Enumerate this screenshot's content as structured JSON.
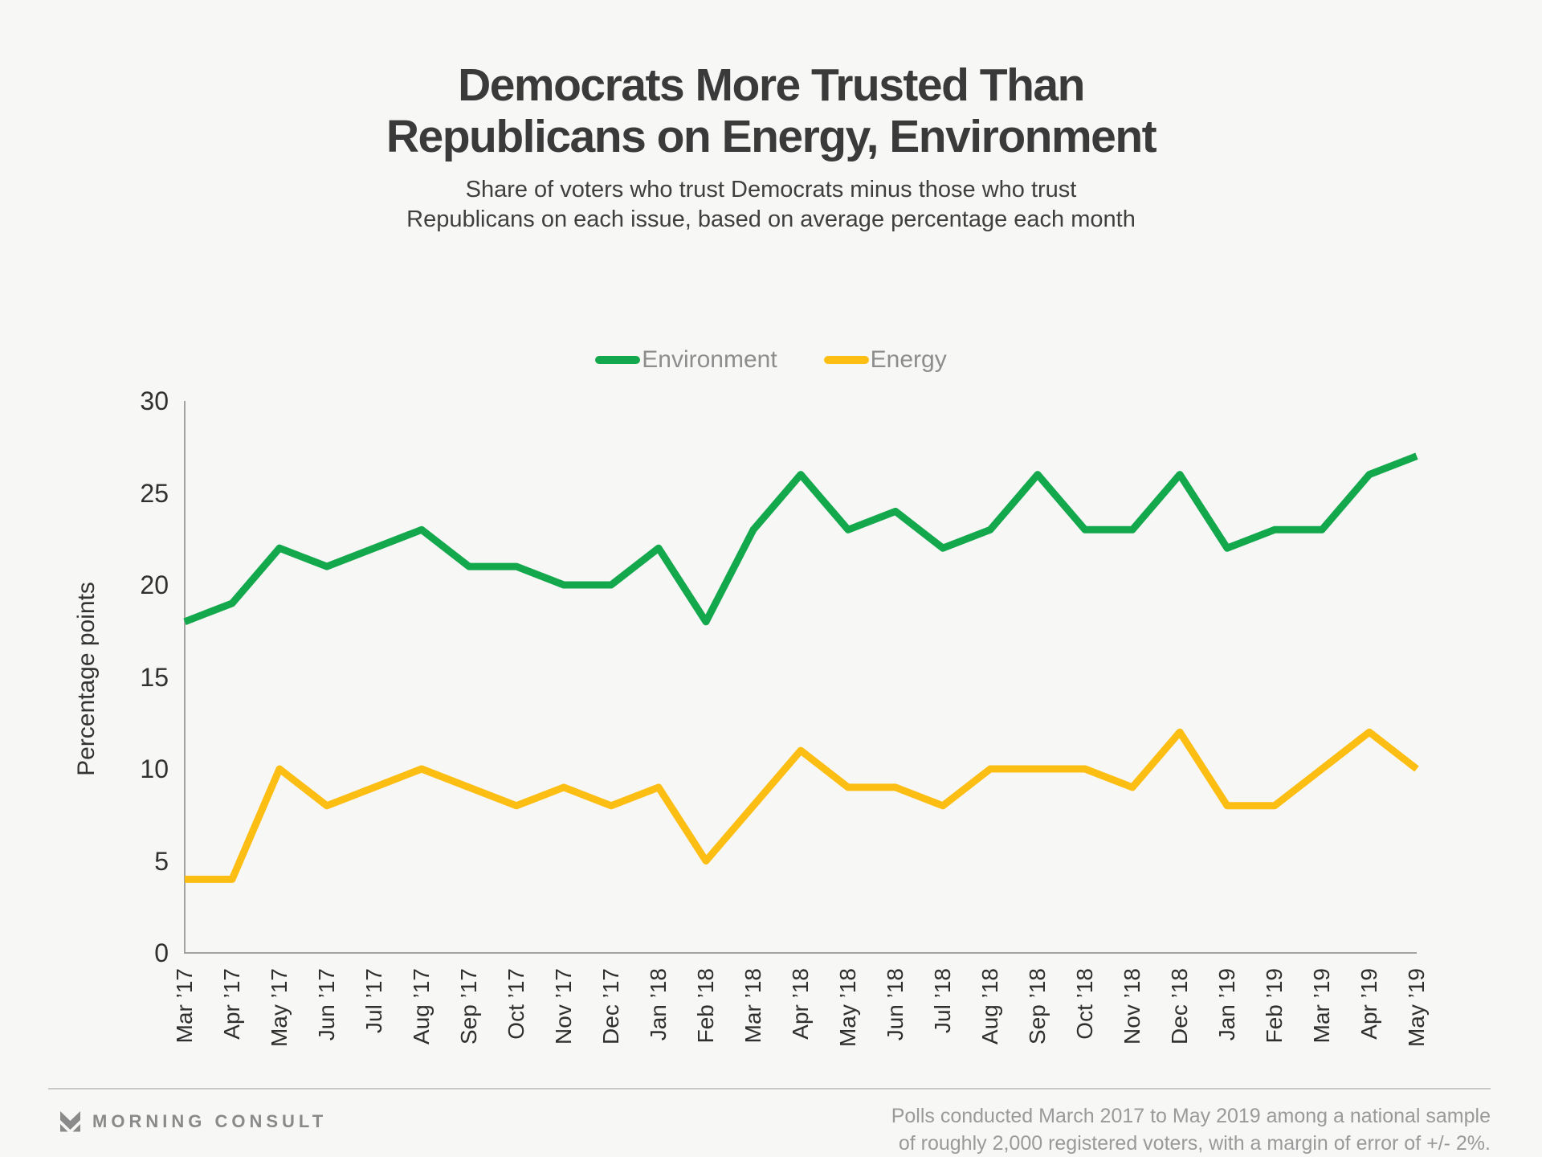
{
  "page": {
    "background": "#F7F7F6"
  },
  "header": {
    "title_line1": "Democrats More Trusted Than",
    "title_line2": "Republicans on Energy, Environment",
    "subtitle_line1": "Share of voters who trust Democrats minus those who trust",
    "subtitle_line2": "Republicans on each issue, based on average percentage each month"
  },
  "chart_data": {
    "type": "line",
    "title": "Democrats More Trusted Than Republicans on Energy, Environment",
    "categories": [
      "Mar ’17",
      "Apr ’17",
      "May ’17",
      "Jun ’17",
      "Jul ’17",
      "Aug ’17",
      "Sep ’17",
      "Oct ’17",
      "Nov ’17",
      "Dec ’17",
      "Jan ’18",
      "Feb ’18",
      "Mar ’18",
      "Apr ’18",
      "May ’18",
      "Jun ’18",
      "Jul ’18",
      "Aug ’18",
      "Sep ’18",
      "Oct ’18",
      "Nov ’18",
      "Dec ’18",
      "Jan ’19",
      "Feb ’19",
      "Mar ’19",
      "Apr ’19",
      "May ’19"
    ],
    "series": [
      {
        "name": "Environment",
        "color": "#14A84C",
        "values": [
          18,
          19,
          22,
          21,
          22,
          23,
          21,
          21,
          20,
          20,
          22,
          18,
          23,
          26,
          23,
          24,
          22,
          23,
          26,
          23,
          23,
          26,
          22,
          23,
          23,
          26,
          27
        ]
      },
      {
        "name": "Energy",
        "color": "#FCBE13",
        "values": [
          4,
          4,
          10,
          8,
          9,
          10,
          9,
          8,
          9,
          8,
          9,
          5,
          8,
          11,
          9,
          9,
          8,
          10,
          10,
          10,
          9,
          12,
          8,
          8,
          10,
          12,
          10
        ]
      }
    ],
    "xlabel": "",
    "ylabel": "Percentage points",
    "ylim": [
      0,
      30
    ],
    "yticks": [
      0,
      5,
      10,
      15,
      20,
      25,
      30
    ],
    "grid": false,
    "legend_position": "top",
    "axis_color": "#A3A3A3"
  },
  "footer": {
    "logo_icon": "morning-consult-m-icon",
    "logo_text": "MORNING CONSULT",
    "note_line1": "Polls conducted March 2017 to May 2019 among a national sample",
    "note_line2": "of roughly 2,000 registered voters, with a margin of error of +/- 2%."
  }
}
